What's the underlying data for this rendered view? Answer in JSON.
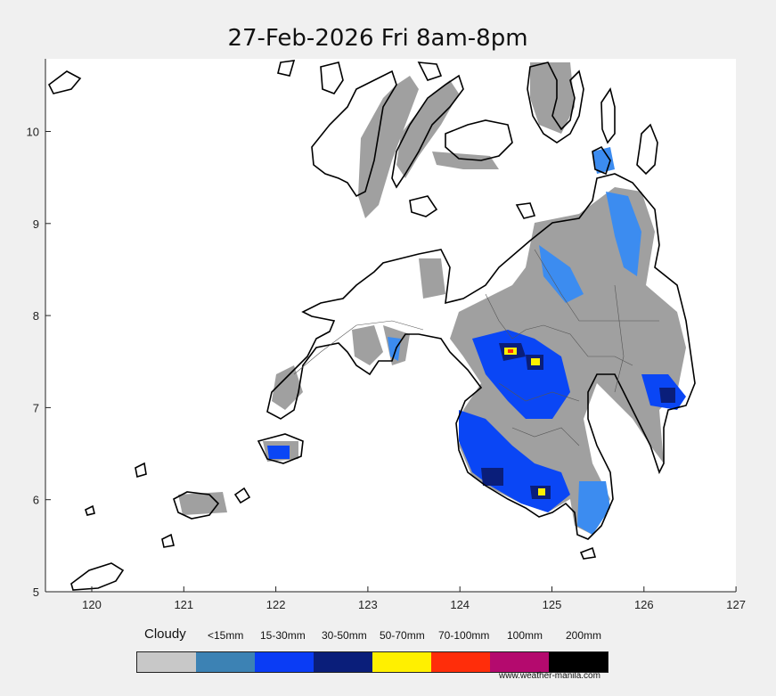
{
  "title": "27-Feb-2026 Fri 8am-8pm",
  "map": {
    "x_ticks": [
      "120",
      "121",
      "122",
      "123",
      "124",
      "125",
      "126",
      "127"
    ],
    "y_ticks": [
      "5",
      "6",
      "7",
      "8",
      "9",
      "10"
    ],
    "frame_color": "#ffffff",
    "coast_color": "#000000"
  },
  "legend": {
    "labels": [
      "Cloudy",
      "<15mm",
      "15-30mm",
      "30-50mm",
      "50-70mm",
      "70-100mm",
      "100mm",
      "200mm"
    ],
    "colors": [
      "#c8c8c8",
      "#3c82b4",
      "#0a3cf5",
      "#0a1e7a",
      "#fff000",
      "#ff2d0a",
      "#b40a6e",
      "#000000"
    ]
  },
  "credit": "www.weather-manila.com",
  "colors": {
    "cloudy": "#a0a0a0",
    "light": "#3c8cf0",
    "moderate": "#0a46f5",
    "heavy": "#0a1e7a",
    "intense": "#fff000",
    "torrential": "#ff2d0a"
  }
}
